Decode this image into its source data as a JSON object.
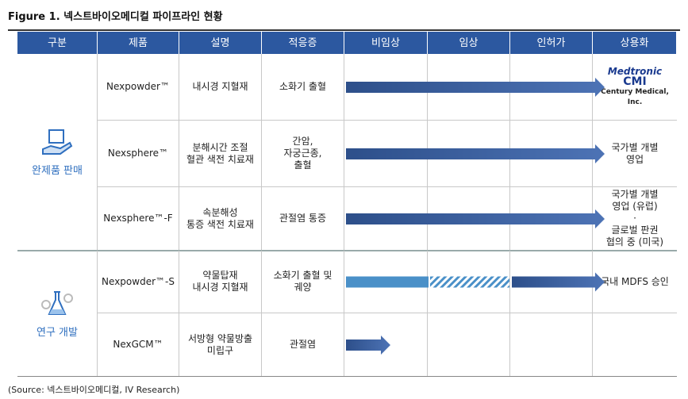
{
  "title": "Figure 1. 넥스트바이오메디컬 파이프라인 현황",
  "header": [
    "구분",
    "제품",
    "설명",
    "적응증",
    "비임상",
    "임상",
    "인허가",
    "상용화"
  ],
  "groups": [
    {
      "name": "완제품 판매",
      "rows": [
        {
          "product": "Nexpowder™",
          "description": "내시경 지혈재",
          "indication": "소화기 출혈",
          "commercial_logos": [
            "Medtronic",
            "CMI",
            "Century Medical, Inc."
          ]
        },
        {
          "product": "Nexsphere™",
          "description": "분해시간 조절\n혈관 색전 치료재",
          "indication": "간암,\n자궁근종,\n출혈",
          "commercial": "국가별 개별\n영업"
        },
        {
          "product": "Nexsphere™-F",
          "description": "속분해성\n통증 색전 치료재",
          "indication": "관절염 통증",
          "commercial": "국가별 개별\n영업 (유럽)\n·\n글로벌 판권\n협의 중 (미국)"
        }
      ]
    },
    {
      "name": "연구 개발",
      "rows": [
        {
          "product": "Nexpowder™-S",
          "description": "약물탑재\n내시경 지혈재",
          "indication": "소화기 출혈 및\n궤양",
          "commercial": "국내 MDFS 승인"
        },
        {
          "product": "NexGCM™",
          "description": "서방형 약물방출\n미립구",
          "indication": "관절염"
        }
      ]
    }
  ],
  "source": "(Source: 넥스트바이오메디컬, IV Research)"
}
